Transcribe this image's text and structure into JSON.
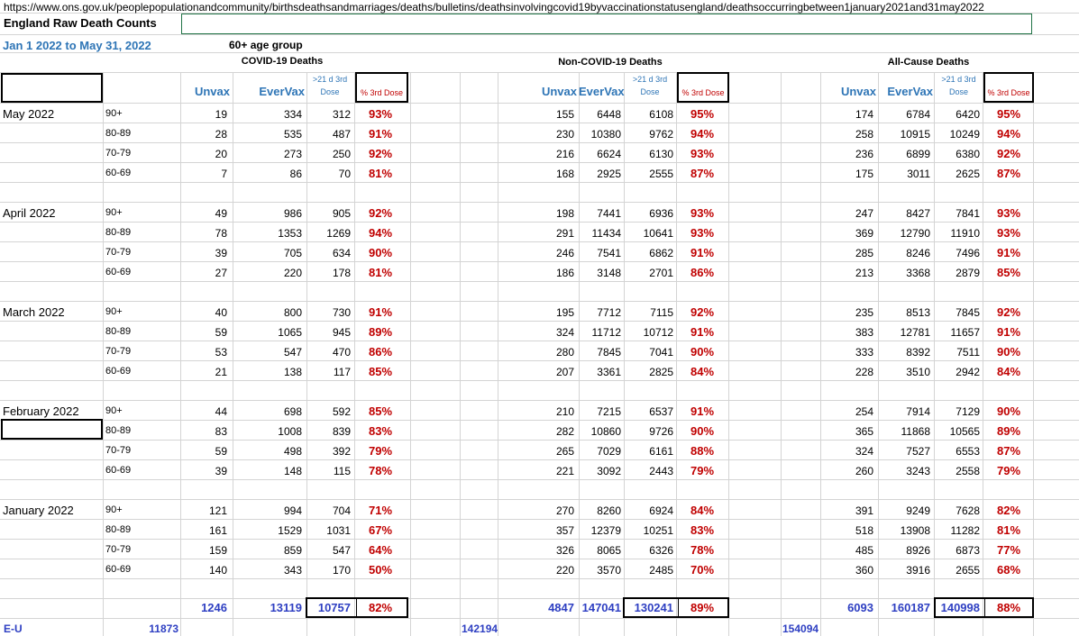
{
  "url": "https://www.ons.gov.uk/peoplepopulationandcommunity/birthsdeathsandmarriages/deaths/bulletins/deathsinvolvingcovid19byvaccinationstatusengland/deathsoccurringbetween1january2021and31may2022",
  "title": "England Raw Death Counts",
  "date_range": "Jan 1 2022 to May 31, 2022",
  "age_group": "60+ age group",
  "sections": [
    "COVID-19 Deaths",
    "Non-COVID-19 Deaths",
    "All-Cause Deaths"
  ],
  "col_headers": {
    "unvax": "Unvax",
    "evervax": "EverVax",
    "third_dose_line1": ">21 d 3rd",
    "third_dose_line2": "Dose",
    "pct_third": "% 3rd Dose"
  },
  "months": [
    {
      "label": "May 2022",
      "rows": [
        {
          "age": "90+",
          "covid": [
            "19",
            "334",
            "312",
            "93%"
          ],
          "noncovid": [
            "155",
            "6448",
            "6108",
            "95%"
          ],
          "allcause": [
            "174",
            "6784",
            "6420",
            "95%"
          ]
        },
        {
          "age": "80-89",
          "covid": [
            "28",
            "535",
            "487",
            "91%"
          ],
          "noncovid": [
            "230",
            "10380",
            "9762",
            "94%"
          ],
          "allcause": [
            "258",
            "10915",
            "10249",
            "94%"
          ]
        },
        {
          "age": "70-79",
          "covid": [
            "20",
            "273",
            "250",
            "92%"
          ],
          "noncovid": [
            "216",
            "6624",
            "6130",
            "93%"
          ],
          "allcause": [
            "236",
            "6899",
            "6380",
            "92%"
          ]
        },
        {
          "age": "60-69",
          "covid": [
            "7",
            "86",
            "70",
            "81%"
          ],
          "noncovid": [
            "168",
            "2925",
            "2555",
            "87%"
          ],
          "allcause": [
            "175",
            "3011",
            "2625",
            "87%"
          ]
        }
      ]
    },
    {
      "label": "April 2022",
      "rows": [
        {
          "age": "90+",
          "covid": [
            "49",
            "986",
            "905",
            "92%"
          ],
          "noncovid": [
            "198",
            "7441",
            "6936",
            "93%"
          ],
          "allcause": [
            "247",
            "8427",
            "7841",
            "93%"
          ]
        },
        {
          "age": "80-89",
          "covid": [
            "78",
            "1353",
            "1269",
            "94%"
          ],
          "noncovid": [
            "291",
            "11434",
            "10641",
            "93%"
          ],
          "allcause": [
            "369",
            "12790",
            "11910",
            "93%"
          ]
        },
        {
          "age": "70-79",
          "covid": [
            "39",
            "705",
            "634",
            "90%"
          ],
          "noncovid": [
            "246",
            "7541",
            "6862",
            "91%"
          ],
          "allcause": [
            "285",
            "8246",
            "7496",
            "91%"
          ]
        },
        {
          "age": "60-69",
          "covid": [
            "27",
            "220",
            "178",
            "81%"
          ],
          "noncovid": [
            "186",
            "3148",
            "2701",
            "86%"
          ],
          "allcause": [
            "213",
            "3368",
            "2879",
            "85%"
          ]
        }
      ]
    },
    {
      "label": "March 2022",
      "rows": [
        {
          "age": "90+",
          "covid": [
            "40",
            "800",
            "730",
            "91%"
          ],
          "noncovid": [
            "195",
            "7712",
            "7115",
            "92%"
          ],
          "allcause": [
            "235",
            "8513",
            "7845",
            "92%"
          ]
        },
        {
          "age": "80-89",
          "covid": [
            "59",
            "1065",
            "945",
            "89%"
          ],
          "noncovid": [
            "324",
            "11712",
            "10712",
            "91%"
          ],
          "allcause": [
            "383",
            "12781",
            "11657",
            "91%"
          ]
        },
        {
          "age": "70-79",
          "covid": [
            "53",
            "547",
            "470",
            "86%"
          ],
          "noncovid": [
            "280",
            "7845",
            "7041",
            "90%"
          ],
          "allcause": [
            "333",
            "8392",
            "7511",
            "90%"
          ]
        },
        {
          "age": "60-69",
          "covid": [
            "21",
            "138",
            "117",
            "85%"
          ],
          "noncovid": [
            "207",
            "3361",
            "2825",
            "84%"
          ],
          "allcause": [
            "228",
            "3510",
            "2942",
            "84%"
          ]
        }
      ]
    },
    {
      "label": "February 2022",
      "rows": [
        {
          "age": "90+",
          "covid": [
            "44",
            "698",
            "592",
            "85%"
          ],
          "noncovid": [
            "210",
            "7215",
            "6537",
            "91%"
          ],
          "allcause": [
            "254",
            "7914",
            "7129",
            "90%"
          ]
        },
        {
          "age": "80-89",
          "covid": [
            "83",
            "1008",
            "839",
            "83%"
          ],
          "noncovid": [
            "282",
            "10860",
            "9726",
            "90%"
          ],
          "allcause": [
            "365",
            "11868",
            "10565",
            "89%"
          ]
        },
        {
          "age": "70-79",
          "covid": [
            "59",
            "498",
            "392",
            "79%"
          ],
          "noncovid": [
            "265",
            "7029",
            "6161",
            "88%"
          ],
          "allcause": [
            "324",
            "7527",
            "6553",
            "87%"
          ]
        },
        {
          "age": "60-69",
          "covid": [
            "39",
            "148",
            "115",
            "78%"
          ],
          "noncovid": [
            "221",
            "3092",
            "2443",
            "79%"
          ],
          "allcause": [
            "260",
            "3243",
            "2558",
            "79%"
          ]
        }
      ]
    },
    {
      "label": "January 2022",
      "rows": [
        {
          "age": "90+",
          "covid": [
            "121",
            "994",
            "704",
            "71%"
          ],
          "noncovid": [
            "270",
            "8260",
            "6924",
            "84%"
          ],
          "allcause": [
            "391",
            "9249",
            "7628",
            "82%"
          ]
        },
        {
          "age": "80-89",
          "covid": [
            "161",
            "1529",
            "1031",
            "67%"
          ],
          "noncovid": [
            "357",
            "12379",
            "10251",
            "83%"
          ],
          "allcause": [
            "518",
            "13908",
            "11282",
            "81%"
          ]
        },
        {
          "age": "70-79",
          "covid": [
            "159",
            "859",
            "547",
            "64%"
          ],
          "noncovid": [
            "326",
            "8065",
            "6326",
            "78%"
          ],
          "allcause": [
            "485",
            "8926",
            "6873",
            "77%"
          ]
        },
        {
          "age": "60-69",
          "covid": [
            "140",
            "343",
            "170",
            "50%"
          ],
          "noncovid": [
            "220",
            "3570",
            "2485",
            "70%"
          ],
          "allcause": [
            "360",
            "3916",
            "2655",
            "68%"
          ]
        }
      ]
    }
  ],
  "totals": {
    "covid": [
      "1246",
      "13119",
      "10757",
      "82%"
    ],
    "noncovid": [
      "4847",
      "147041",
      "130241",
      "89%"
    ],
    "allcause": [
      "6093",
      "160187",
      "140998",
      "88%"
    ]
  },
  "eu": {
    "label": "E-U",
    "covid": "11873",
    "noncovid": "142194",
    "allcause": "154094"
  }
}
